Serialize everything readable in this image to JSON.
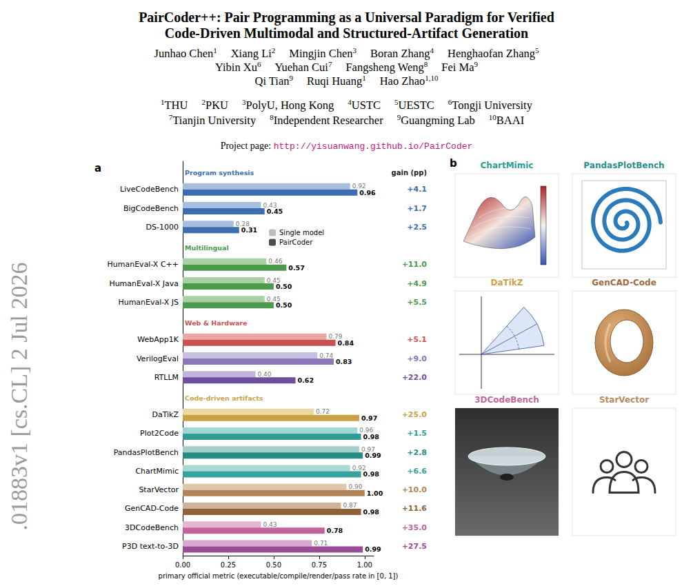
{
  "header": {
    "title": [
      "PairCoder++: Pair Programming as a Universal Paradigm for Verified",
      "Code-Driven Multimodal and Structured-Artifact Generation"
    ],
    "authors": [
      [
        {
          "name": "Junhao Chen",
          "affil": "1"
        },
        {
          "name": "Xiang Li",
          "affil": "2"
        },
        {
          "name": "Mingjin Chen",
          "affil": "3"
        },
        {
          "name": "Boran Zhang",
          "affil": "4"
        },
        {
          "name": "Henghaofan Zhang",
          "affil": "5"
        }
      ],
      [
        {
          "name": "Yibin Xu",
          "affil": "6"
        },
        {
          "name": "Yuehan Cui",
          "affil": "7"
        },
        {
          "name": "Fangsheng Weng",
          "affil": "8"
        },
        {
          "name": "Fei Ma",
          "affil": "9"
        }
      ],
      [
        {
          "name": "Qi Tian",
          "affil": "9"
        },
        {
          "name": "Ruqi Huang",
          "affil": "1"
        },
        {
          "name": "Hao Zhao",
          "affil": "1,10"
        }
      ]
    ],
    "affiliations": [
      [
        {
          "mark": "1",
          "name": "THU"
        },
        {
          "mark": "2",
          "name": "PKU"
        },
        {
          "mark": "3",
          "name": "PolyU, Hong Kong"
        },
        {
          "mark": "4",
          "name": "USTC"
        },
        {
          "mark": "5",
          "name": "UESTC"
        },
        {
          "mark": "6",
          "name": "Tongji University"
        }
      ],
      [
        {
          "mark": "7",
          "name": "Tianjin University"
        },
        {
          "mark": "8",
          "name": "Independent Researcher"
        },
        {
          "mark": "9",
          "name": "Guangming Lab"
        },
        {
          "mark": "10",
          "name": "BAAI"
        }
      ]
    ],
    "project_page": {
      "label": "Project page:",
      "url": "http://yisuanwang.github.io/PairCoder"
    },
    "arxiv_stamp": ".01883v1 [cs.CL] 2 Jul 2026"
  },
  "chart_data": {
    "type": "bar",
    "panel": "a",
    "orientation": "horizontal",
    "categories": [
      null,
      "LiveCodeBench",
      "BigCodeBench",
      "DS-1000",
      null,
      "HumanEval-X C++",
      "HumanEval-X Java",
      "HumanEval-X JS",
      null,
      "WebApp1K",
      "VerilogEval",
      "RTLLM",
      null,
      "DaTikZ",
      "Plot2Code",
      "PandasPlotBench",
      "ChartMimic",
      "StarVector",
      "GenCAD-Code",
      "3DCodeBench",
      "P3D text-to-3D"
    ],
    "groups": [
      {
        "label": "Program synthesis",
        "color": "#3c6db0"
      },
      {
        "label": "Multilingual",
        "color": "#4c9a4c"
      },
      {
        "label": "Web & Hardware",
        "color": "#c8524f"
      },
      {
        "label": "Code-driven artifacts",
        "color": "#c9a246"
      }
    ],
    "series": [
      {
        "name": "Single model",
        "color": "#bdbdbd",
        "colors": [
          null,
          "#a8bedf",
          "#a8bedf",
          "#a8bedf",
          null,
          "#a9d1a5",
          "#a9d1a5",
          "#a9d1a5",
          null,
          "#eba9a6",
          "#c8bfe0",
          "#c3b3dc",
          null,
          "#ead8a2",
          "#a2d6d2",
          "#a0cfcb",
          "#a8dad5",
          "#dec6a8",
          "#cfb399",
          "#e6b5d1",
          "#d5a9d1"
        ],
        "values": [
          null,
          0.92,
          0.43,
          0.28,
          null,
          0.46,
          0.45,
          0.45,
          null,
          0.79,
          0.74,
          0.4,
          null,
          0.72,
          0.96,
          0.97,
          0.92,
          0.9,
          0.87,
          0.43,
          0.71
        ],
        "value_labels": [
          null,
          "0.92",
          "0.43",
          "0.28",
          null,
          "0.46",
          "0.45",
          "0.45",
          null,
          "0.79",
          "0.74",
          "0.40",
          null,
          "0.72",
          "0.96",
          "0.97",
          "0.92",
          "0.90",
          "0.87",
          "0.43",
          "0.71"
        ]
      },
      {
        "name": "PairCoder",
        "color": "#4d4d4d",
        "colors": [
          null,
          "#3c6db0",
          "#3c6db0",
          "#3c6db0",
          null,
          "#4c9a4c",
          "#4c9a4c",
          "#4c9a4c",
          null,
          "#c8524f",
          "#8a76b8",
          "#6e4f9e",
          null,
          "#c9a246",
          "#2f9c96",
          "#2a8a85",
          "#35a39c",
          "#b08458",
          "#8f6137",
          "#c2639a",
          "#9a4d94"
        ],
        "values": [
          null,
          0.96,
          0.45,
          0.31,
          null,
          0.57,
          0.5,
          0.5,
          null,
          0.84,
          0.83,
          0.62,
          null,
          0.97,
          0.98,
          0.99,
          0.98,
          1.0,
          0.98,
          0.78,
          0.99
        ],
        "value_labels": [
          null,
          "0.96",
          "0.45",
          "0.31",
          null,
          "0.57",
          "0.50",
          "0.50",
          null,
          "0.84",
          "0.83",
          "0.62",
          null,
          "0.97",
          "0.98",
          "0.99",
          "0.98",
          "1.00",
          "0.98",
          "0.78",
          "0.99"
        ]
      }
    ],
    "gain": {
      "label": "gain (pp)",
      "colors": [
        null,
        "#3c6db0",
        "#3c6db0",
        "#3c6db0",
        null,
        "#4c9a4c",
        "#4c9a4c",
        "#4c9a4c",
        null,
        "#c8524f",
        "#8a76b8",
        "#6e4f9e",
        null,
        "#c9a246",
        "#2f9c96",
        "#2a8a85",
        "#35a39c",
        "#b08458",
        "#8f6137",
        "#c2639a",
        "#9a4d94"
      ],
      "values": [
        null,
        4.1,
        1.7,
        2.5,
        null,
        11.0,
        4.9,
        5.5,
        null,
        5.1,
        9.0,
        22.0,
        null,
        25.0,
        1.5,
        2.8,
        6.6,
        10.0,
        11.6,
        35.0,
        27.5
      ],
      "value_labels": [
        null,
        "+4.1",
        "+1.7",
        "+2.5",
        null,
        "+11.0",
        "+4.9",
        "+5.5",
        null,
        "+5.1",
        "+9.0",
        "+22.0",
        null,
        "+25.0",
        "+1.5",
        "+2.8",
        "+6.6",
        "+10.0",
        "+11.6",
        "+35.0",
        "+27.5"
      ]
    },
    "xlabel": "primary official metric (executable/compile/render/pass rate in [0, 1])",
    "xlim": [
      0,
      1.05
    ],
    "xticks": [
      {
        "value": 0,
        "label": "0.00"
      },
      0.25,
      {
        "value": 0.5,
        "label": "0.50"
      },
      0.75,
      {
        "value": 1,
        "label": "1.00"
      }
    ],
    "data_labels": true,
    "legend": "center",
    "grid": false
  },
  "panel_b": {
    "label": "b",
    "items": [
      {
        "title": "ChartMimic",
        "color": "#2a9d95"
      },
      {
        "title": "PandasPlotBench",
        "color": "#2a8f8a"
      },
      {
        "title": "DaTikZ",
        "color": "#c9a246"
      },
      {
        "title": "GenCAD-Code",
        "color": "#9c6b3f"
      },
      {
        "title": "3DCodeBench",
        "color": "#c4679d"
      },
      {
        "title": "StarVector",
        "color": "#b98b5c"
      }
    ]
  }
}
